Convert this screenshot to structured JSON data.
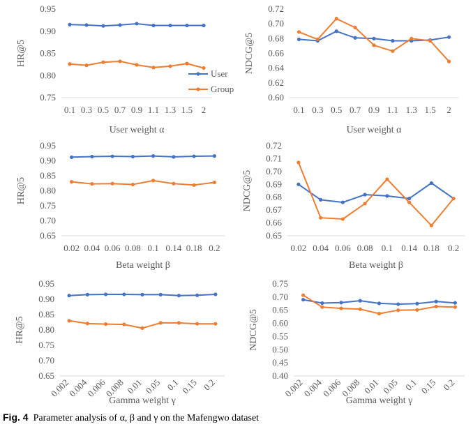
{
  "caption": {
    "label": "Fig. 4",
    "text": "Parameter analysis of α, β and γ on the Mafengwo dataset"
  },
  "colors": {
    "user": "#4472C4",
    "group": "#ED7D31"
  },
  "chart_data": [
    {
      "type": "line",
      "xlabel": "User weight α",
      "ylabel": "HR@5",
      "categories": [
        "0.1",
        "0.3",
        "0.5",
        "0.7",
        "0.9",
        "1.1",
        "1.3",
        "1.5",
        "2"
      ],
      "yticks": [
        "0.75",
        "0.80",
        "0.85",
        "0.90",
        "0.95"
      ],
      "ylim": [
        0.75,
        0.95
      ],
      "legend": {
        "placement": "right",
        "entries": [
          "User",
          "Group"
        ]
      },
      "series": [
        {
          "name": "User",
          "values": [
            0.915,
            0.914,
            0.912,
            0.914,
            0.917,
            0.913,
            0.913,
            0.913,
            0.913
          ]
        },
        {
          "name": "Group",
          "values": [
            0.826,
            0.823,
            0.83,
            0.832,
            0.824,
            0.818,
            0.821,
            0.827,
            0.817
          ]
        }
      ]
    },
    {
      "type": "line",
      "xlabel": "User weight α",
      "ylabel": "NDCG@5",
      "categories": [
        "0.1",
        "0.3",
        "0.5",
        "0.7",
        "0.9",
        "1.1",
        "1.3",
        "1.5",
        "2"
      ],
      "yticks": [
        "0.60",
        "0.62",
        "0.64",
        "0.66",
        "0.68",
        "0.70",
        "0.72"
      ],
      "ylim": [
        0.6,
        0.72
      ],
      "series": [
        {
          "name": "User",
          "values": [
            0.679,
            0.677,
            0.69,
            0.681,
            0.68,
            0.677,
            0.677,
            0.678,
            0.682
          ]
        },
        {
          "name": "Group",
          "values": [
            0.689,
            0.679,
            0.707,
            0.695,
            0.671,
            0.663,
            0.68,
            0.677,
            0.649
          ]
        }
      ]
    },
    {
      "type": "line",
      "xlabel": "Beta weight β",
      "ylabel": "HR@5",
      "categories": [
        "0.02",
        "0.04",
        "0.06",
        "0.08",
        "0.1",
        "0.14",
        "0.18",
        "0.2"
      ],
      "yticks": [
        "0.65",
        "0.70",
        "0.75",
        "0.80",
        "0.85",
        "0.90",
        "0.95"
      ],
      "ylim": [
        0.65,
        0.95
      ],
      "series": [
        {
          "name": "User",
          "values": [
            0.912,
            0.914,
            0.915,
            0.914,
            0.916,
            0.913,
            0.915,
            0.916
          ]
        },
        {
          "name": "Group",
          "values": [
            0.83,
            0.823,
            0.824,
            0.821,
            0.834,
            0.824,
            0.819,
            0.828
          ]
        }
      ]
    },
    {
      "type": "line",
      "xlabel": "Beta weight β",
      "ylabel": "NDCG@5",
      "categories": [
        "0.02",
        "0.04",
        "0.06",
        "0.08",
        "0.1",
        "0.14",
        "0.18",
        "0.2"
      ],
      "yticks": [
        "0.65",
        "0.66",
        "0.67",
        "0.68",
        "0.69",
        "0.70",
        "0.71",
        "0.72"
      ],
      "ylim": [
        0.65,
        0.72
      ],
      "series": [
        {
          "name": "User",
          "values": [
            0.69,
            0.678,
            0.676,
            0.682,
            0.681,
            0.679,
            0.691,
            0.679
          ]
        },
        {
          "name": "Group",
          "values": [
            0.707,
            0.664,
            0.663,
            0.675,
            0.694,
            0.676,
            0.658,
            0.679
          ]
        }
      ]
    },
    {
      "type": "line",
      "xlabel": "Gamma weight γ",
      "ylabel": "HR@5",
      "categories": [
        "0.002",
        "0.004",
        "0.006",
        "0.008",
        "0.01",
        "0.05",
        "0.1",
        "0.15",
        "0.2"
      ],
      "yticks": [
        "0.65",
        "0.70",
        "0.75",
        "0.80",
        "0.85",
        "0.90",
        "0.95"
      ],
      "ylim": [
        0.65,
        0.95
      ],
      "series": [
        {
          "name": "User",
          "values": [
            0.912,
            0.915,
            0.916,
            0.916,
            0.915,
            0.915,
            0.912,
            0.913,
            0.916
          ]
        },
        {
          "name": "Group",
          "values": [
            0.83,
            0.821,
            0.819,
            0.818,
            0.806,
            0.823,
            0.823,
            0.82,
            0.82
          ]
        }
      ]
    },
    {
      "type": "line",
      "xlabel": "Gamma weight γ",
      "ylabel": "NDCG@5",
      "categories": [
        "0.002",
        "0.004",
        "0.006",
        "0.008",
        "0.01",
        "0.05",
        "0.1",
        "0.15",
        "0.2"
      ],
      "yticks": [
        "0.40",
        "0.45",
        "0.50",
        "0.55",
        "0.60",
        "0.65",
        "0.70",
        "0.75"
      ],
      "ylim": [
        0.4,
        0.75
      ],
      "series": [
        {
          "name": "User",
          "values": [
            0.69,
            0.677,
            0.679,
            0.686,
            0.676,
            0.673,
            0.675,
            0.683,
            0.678
          ]
        },
        {
          "name": "Group",
          "values": [
            0.707,
            0.662,
            0.657,
            0.654,
            0.637,
            0.65,
            0.651,
            0.664,
            0.662
          ]
        }
      ]
    }
  ]
}
